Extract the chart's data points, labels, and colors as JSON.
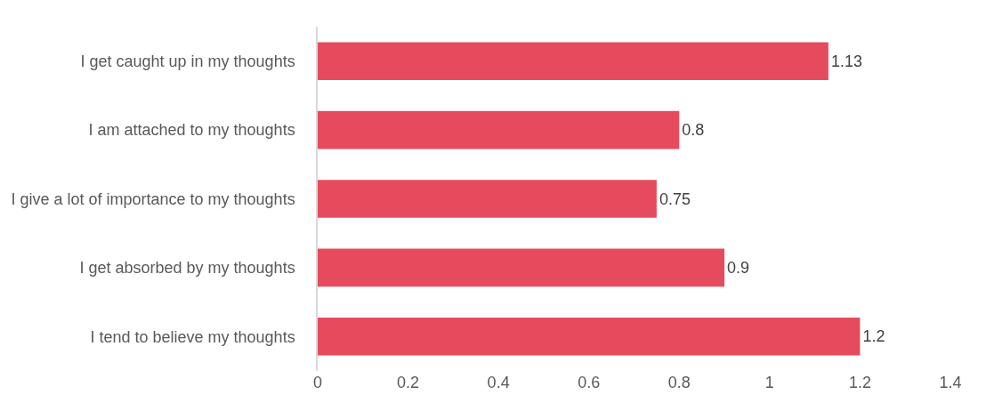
{
  "chart_data": {
    "type": "bar",
    "orientation": "horizontal",
    "categories": [
      "I get caught up in my thoughts",
      "I am attached to my thoughts",
      "I give a lot of importance to my thoughts",
      "I get absorbed by my thoughts",
      "I tend to believe my thoughts"
    ],
    "values": [
      1.13,
      0.8,
      0.75,
      0.9,
      1.2
    ],
    "color": "#e64b5d",
    "xlim": [
      0,
      1.4
    ],
    "xticks": [
      0,
      0.2,
      0.4,
      0.6,
      0.8,
      1,
      1.2,
      1.4
    ],
    "grid": false,
    "data_labels": true
  }
}
